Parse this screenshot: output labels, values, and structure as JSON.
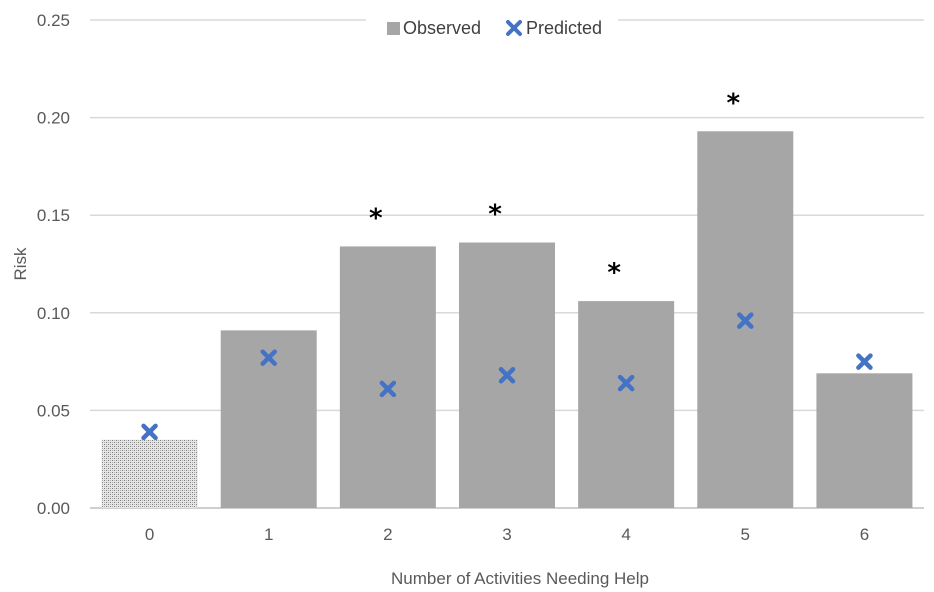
{
  "chart_data": {
    "type": "bar",
    "xlabel": "Number of Activities Needing Help",
    "ylabel": "Risk",
    "categories": [
      "0",
      "1",
      "2",
      "3",
      "4",
      "5",
      "6"
    ],
    "ylim": [
      0,
      0.25
    ],
    "yticks": [
      "0.00",
      "0.05",
      "0.10",
      "0.15",
      "0.20",
      "0.25"
    ],
    "grid": true,
    "legend_position": "top-center",
    "series": [
      {
        "name": "Observed",
        "kind": "bar",
        "color": "#a6a6a6",
        "values": [
          0.035,
          0.091,
          0.134,
          0.136,
          0.106,
          0.193,
          0.069
        ],
        "patterned_first_bar": true
      },
      {
        "name": "Predicted",
        "kind": "marker-x",
        "color": "#4472c4",
        "values": [
          0.039,
          0.077,
          0.061,
          0.068,
          0.064,
          0.096,
          0.075
        ]
      }
    ],
    "significance": {
      "symbol": "*",
      "categories": [
        "2",
        "3",
        "4",
        "5"
      ]
    }
  }
}
